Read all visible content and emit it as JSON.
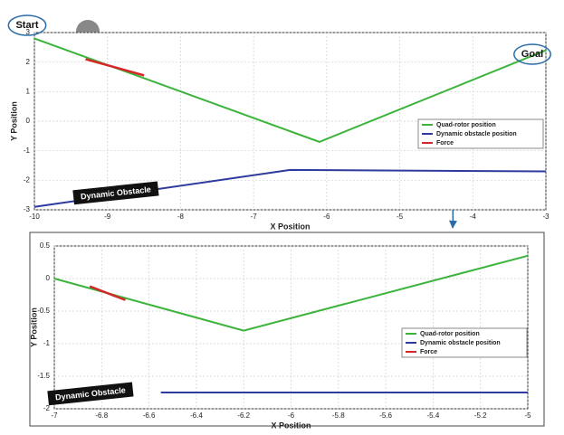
{
  "chart_data": [
    {
      "type": "line",
      "xlabel": "X Position",
      "ylabel": "Y Position",
      "xlim": [
        -10,
        -3
      ],
      "xticks": [
        -10,
        -9,
        -8,
        -7,
        -6,
        -5,
        -4,
        -3
      ],
      "ylim": [
        -3,
        3
      ],
      "yticks": [
        -3,
        -2,
        -1,
        0,
        1,
        2,
        3
      ],
      "grid": true,
      "legend": "right",
      "series": [
        {
          "name": "Quad-rotor position",
          "color": "#3cb43c",
          "x": [
            -10,
            -6.1,
            -3
          ],
          "values": [
            2.8,
            -0.7,
            2.4
          ]
        },
        {
          "name": "Dynamic obstacle position",
          "color": "#2d3a9e",
          "x": [
            -10,
            -6.5,
            -3
          ],
          "values": [
            -2.9,
            -1.65,
            -1.7
          ]
        },
        {
          "name": "Force",
          "color": "#d62728",
          "x": [
            -9.3,
            -8.5
          ],
          "values": [
            2.1,
            1.55
          ]
        }
      ],
      "annotations": [
        "Start",
        "Goal",
        "Dynamic Obstacle"
      ]
    },
    {
      "type": "line",
      "xlabel": "X Position",
      "ylabel": "Y Position",
      "xlim": [
        -7,
        -5
      ],
      "xticks": [
        -7,
        -6.8,
        -6.6,
        -6.4,
        -6.2,
        -6,
        -5.8,
        -5.6,
        -5.4,
        -5.2,
        -5
      ],
      "ylim": [
        -2,
        0.5
      ],
      "yticks": [
        -2,
        -1.5,
        -1,
        -0.5,
        0,
        0.5
      ],
      "grid": true,
      "legend": "right",
      "series": [
        {
          "name": "Quad-rotor position",
          "color": "#3cb43c",
          "x": [
            -7,
            -6.2,
            -5
          ],
          "values": [
            0,
            -0.8,
            0.35
          ]
        },
        {
          "name": "Dynamic obstacle position",
          "color": "#2d3a9e",
          "x": [
            -6.55,
            -5
          ],
          "values": [
            -1.75,
            -1.75
          ]
        },
        {
          "name": "Force",
          "color": "#d62728",
          "x": [
            -6.85,
            -6.7
          ],
          "values": [
            -0.12,
            -0.33
          ]
        }
      ],
      "annotations": [
        "Dynamic Obstacle"
      ]
    }
  ]
}
